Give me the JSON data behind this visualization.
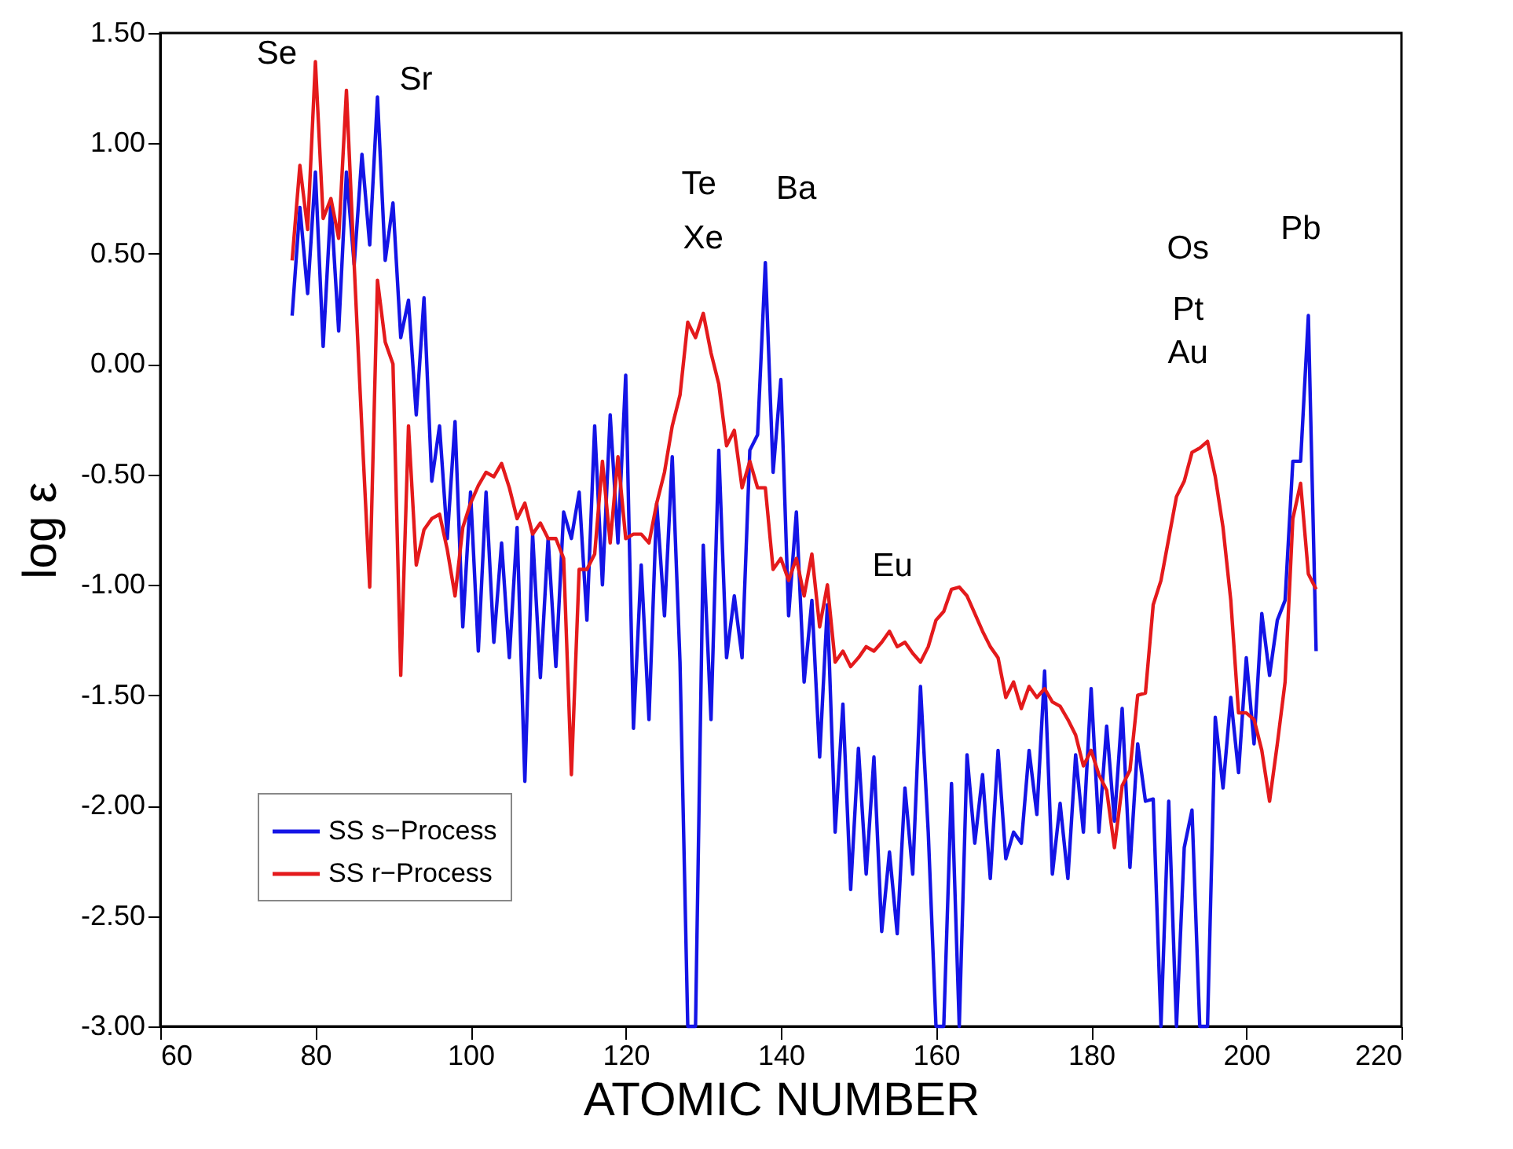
{
  "chart_data": {
    "type": "line",
    "xlabel": "ATOMIC NUMBER",
    "ylabel": "log ε",
    "x": [
      77,
      78,
      79,
      80,
      81,
      82,
      83,
      84,
      85,
      86,
      87,
      88,
      89,
      90,
      91,
      92,
      93,
      94,
      95,
      96,
      97,
      98,
      99,
      100,
      101,
      102,
      103,
      104,
      105,
      106,
      107,
      108,
      109,
      110,
      111,
      112,
      113,
      114,
      115,
      116,
      117,
      118,
      119,
      120,
      121,
      122,
      123,
      124,
      125,
      126,
      127,
      128,
      129,
      130,
      131,
      132,
      133,
      134,
      135,
      136,
      137,
      138,
      139,
      140,
      141,
      142,
      143,
      144,
      145,
      146,
      147,
      148,
      149,
      150,
      151,
      152,
      153,
      154,
      155,
      156,
      157,
      158,
      159,
      160,
      161,
      162,
      163,
      164,
      165,
      166,
      167,
      168,
      169,
      170,
      171,
      172,
      173,
      174,
      175,
      176,
      177,
      178,
      179,
      180,
      181,
      182,
      183,
      184,
      185,
      186,
      187,
      188,
      189,
      190,
      191,
      192,
      193,
      194,
      195,
      196,
      197,
      198,
      199,
      200,
      201,
      202,
      203,
      204,
      205,
      206,
      207,
      208,
      209
    ],
    "series": [
      {
        "name": "SS s−Process",
        "color": "#1414e6",
        "values": [
          0.22,
          0.71,
          0.32,
          0.87,
          0.08,
          0.73,
          0.15,
          0.87,
          0.45,
          0.95,
          0.54,
          1.21,
          0.47,
          0.73,
          0.12,
          0.29,
          -0.23,
          0.3,
          -0.53,
          -0.28,
          -0.79,
          -0.26,
          -1.19,
          -0.58,
          -1.3,
          -0.58,
          -1.26,
          -0.81,
          -1.33,
          -0.74,
          -1.89,
          -0.77,
          -1.42,
          -0.79,
          -1.37,
          -0.67,
          -0.79,
          -0.58,
          -1.16,
          -0.28,
          -1.0,
          -0.23,
          -0.81,
          -0.05,
          -1.65,
          -0.91,
          -1.61,
          -0.63,
          -1.14,
          -0.42,
          -1.35,
          -3.0,
          -3.0,
          -0.82,
          -1.61,
          -0.39,
          -1.33,
          -1.05,
          -1.33,
          -0.39,
          -0.32,
          0.46,
          -0.49,
          -0.07,
          -1.14,
          -0.67,
          -1.44,
          -1.07,
          -1.78,
          -1.09,
          -2.12,
          -1.54,
          -2.38,
          -1.74,
          -2.31,
          -1.78,
          -2.57,
          -2.21,
          -2.58,
          -1.92,
          -2.31,
          -1.46,
          -2.12,
          -3.0,
          -3.0,
          -1.9,
          -3.0,
          -1.77,
          -2.17,
          -1.86,
          -2.33,
          -1.75,
          -2.24,
          -2.12,
          -2.17,
          -1.75,
          -2.04,
          -1.39,
          -2.31,
          -1.99,
          -2.33,
          -1.77,
          -2.12,
          -1.47,
          -2.12,
          -1.64,
          -2.07,
          -1.56,
          -2.28,
          -1.72,
          -1.98,
          -1.97,
          -3.0,
          -1.98,
          -3.0,
          -2.19,
          -2.02,
          -3.0,
          -3.0,
          -1.6,
          -1.92,
          -1.51,
          -1.85,
          -1.33,
          -1.72,
          -1.13,
          -1.41,
          -1.16,
          -1.07,
          -0.44,
          -0.44,
          0.22,
          -1.3
        ]
      },
      {
        "name": "SS r−Process",
        "color": "#e41a1c",
        "values": [
          0.47,
          0.9,
          0.61,
          1.37,
          0.66,
          0.75,
          0.57,
          1.24,
          0.45,
          -0.3,
          -1.01,
          0.38,
          0.1,
          0.0,
          -1.41,
          -0.28,
          -0.91,
          -0.75,
          -0.7,
          -0.68,
          -0.84,
          -1.05,
          -0.74,
          -0.63,
          -0.55,
          -0.49,
          -0.51,
          -0.45,
          -0.56,
          -0.7,
          -0.63,
          -0.77,
          -0.72,
          -0.79,
          -0.79,
          -0.88,
          -1.86,
          -0.93,
          -0.93,
          -0.86,
          -0.44,
          -0.81,
          -0.42,
          -0.79,
          -0.77,
          -0.77,
          -0.81,
          -0.63,
          -0.49,
          -0.28,
          -0.14,
          0.19,
          0.12,
          0.23,
          0.05,
          -0.09,
          -0.37,
          -0.3,
          -0.56,
          -0.44,
          -0.56,
          -0.56,
          -0.93,
          -0.88,
          -0.98,
          -0.88,
          -1.05,
          -0.86,
          -1.19,
          -1.0,
          -1.35,
          -1.3,
          -1.37,
          -1.33,
          -1.28,
          -1.3,
          -1.26,
          -1.21,
          -1.28,
          -1.26,
          -1.31,
          -1.35,
          -1.28,
          -1.16,
          -1.12,
          -1.02,
          -1.01,
          -1.05,
          -1.13,
          -1.21,
          -1.28,
          -1.33,
          -1.51,
          -1.44,
          -1.56,
          -1.46,
          -1.51,
          -1.47,
          -1.53,
          -1.55,
          -1.61,
          -1.68,
          -1.82,
          -1.75,
          -1.86,
          -1.93,
          -2.19,
          -1.91,
          -1.84,
          -1.5,
          -1.49,
          -1.09,
          -0.98,
          -0.79,
          -0.6,
          -0.53,
          -0.4,
          -0.38,
          -0.35,
          -0.51,
          -0.74,
          -1.07,
          -1.58,
          -1.58,
          -1.61,
          -1.75,
          -1.98,
          -1.72,
          -1.44,
          -0.7,
          -0.54,
          -0.95,
          -1.02
        ]
      }
    ],
    "annotations": [
      "Se",
      "Sr",
      "Te",
      "Xe",
      "Ba",
      "Eu",
      "Os",
      "Pt",
      "Au",
      "Pb"
    ],
    "xlim": [
      60,
      220
    ],
    "xticks": [
      60,
      80,
      100,
      120,
      140,
      160,
      180,
      200,
      220
    ],
    "ylim": [
      -3.0,
      1.5
    ],
    "yticks": [
      {
        "value": -3,
        "label": "-3.00"
      },
      {
        "value": -2.5,
        "label": "-2.50"
      },
      {
        "value": -2,
        "label": "-2.00"
      },
      {
        "value": -1.5,
        "label": "-1.50"
      },
      {
        "value": -1,
        "label": "-1.00"
      },
      {
        "value": -0.5,
        "label": "-0.50"
      },
      {
        "value": 0,
        "label": "0.00"
      },
      {
        "value": 0.5,
        "label": "0.50"
      },
      {
        "value": 1,
        "label": "1.00"
      },
      {
        "value": 1.5,
        "label": "1.50"
      }
    ],
    "legend": "bottom left",
    "grid": false,
    "marker": "none",
    "line_style": "solid"
  }
}
